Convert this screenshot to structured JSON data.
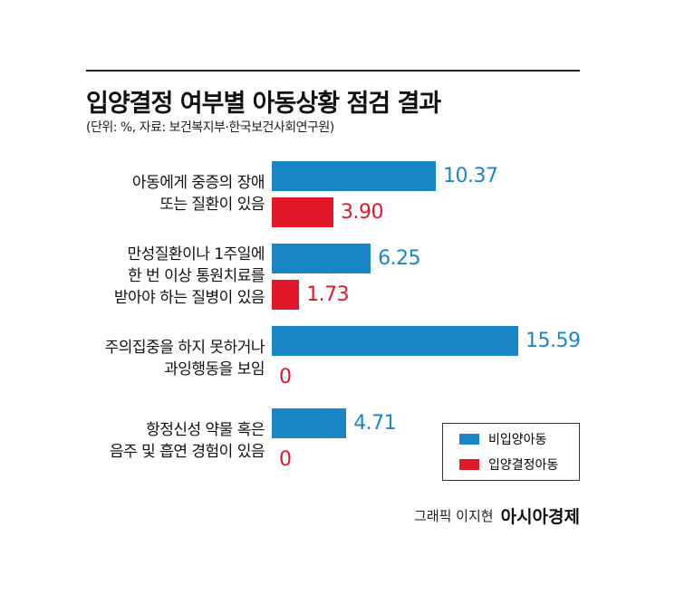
{
  "chart_data": {
    "type": "bar",
    "orientation": "horizontal",
    "title": "입양결정 여부별 아동상황 점검 결과",
    "subtitle": "(단위: %, 자료: 보건복지부·한국보건사회연구원)",
    "categories": [
      "아동에게 중증의 장애\n또는 질환이 있음",
      "만성질환이나 1주일에\n한 번 이상 통원치료를\n받아야 하는 질병이 있음",
      "주의집중을 하지 못하거나\n과잉행동을 보임",
      "항정신성 약물 혹은\n음주 및 흡연 경험이 있음"
    ],
    "series": [
      {
        "name": "비입양아동",
        "color": "#1a86c8",
        "values": [
          10.37,
          6.25,
          15.59,
          4.71
        ]
      },
      {
        "name": "입양결정아동",
        "color": "#e0182a",
        "values": [
          3.9,
          1.73,
          0,
          0
        ],
        "value_labels": [
          "3.90",
          "1.73",
          "0",
          "0"
        ]
      }
    ],
    "legend": "lower right",
    "credit": "그래픽 이지현",
    "publisher": "아시아경제"
  }
}
